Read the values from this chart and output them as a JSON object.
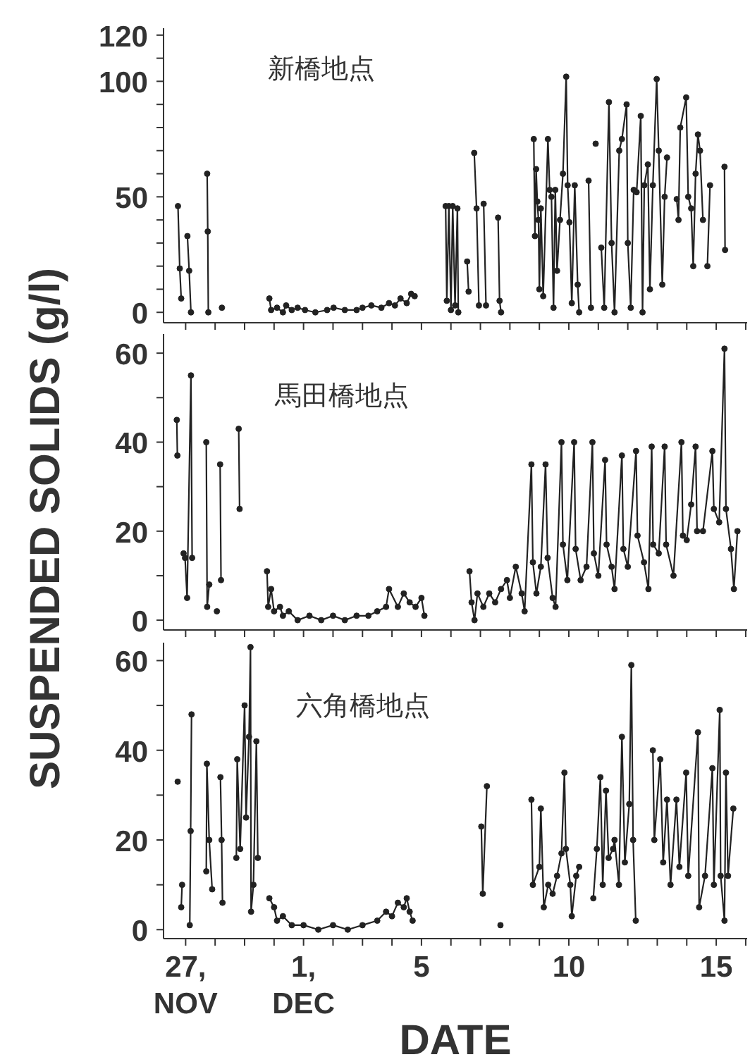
{
  "chart_data": [
    {
      "type": "line",
      "title": "新橋地点",
      "ylabel": "SUSPENDED SOLIDS  (g/l)",
      "tick_labels": "y",
      "marker": "circle",
      "line_style": "solid",
      "xlim": [
        -3.75,
        16.05
      ],
      "xticks": [
        {
          "value": -3,
          "label": null
        },
        {
          "value": -2,
          "label": null
        },
        {
          "value": -1,
          "label": null
        },
        {
          "value": 0,
          "label": null
        },
        {
          "value": 1,
          "label": null
        },
        {
          "value": 2,
          "label": null
        },
        {
          "value": 3,
          "label": null
        },
        {
          "value": 4,
          "label": null
        },
        {
          "value": 5,
          "label": null
        },
        {
          "value": 6,
          "label": null
        },
        {
          "value": 7,
          "label": null
        },
        {
          "value": 8,
          "label": null
        },
        {
          "value": 9,
          "label": null
        },
        {
          "value": 10,
          "label": null
        },
        {
          "value": 11,
          "label": null
        },
        {
          "value": 12,
          "label": null
        },
        {
          "value": 13,
          "label": null
        },
        {
          "value": 14,
          "label": null
        },
        {
          "value": 15,
          "label": null
        },
        {
          "value": 16,
          "label": null
        }
      ],
      "ylim": [
        -4.5,
        123
      ],
      "yticks": [
        0,
        {
          "value": 10,
          "label": null
        },
        {
          "value": 20,
          "label": null
        },
        {
          "value": 30,
          "label": null
        },
        {
          "value": 40,
          "label": null
        },
        50,
        {
          "value": 60,
          "label": null
        },
        {
          "value": 70,
          "label": null
        },
        {
          "value": 80,
          "label": null
        },
        {
          "value": 90,
          "label": null
        },
        100,
        {
          "value": 110,
          "label": null
        },
        120
      ],
      "series": [
        {
          "color": "#222222",
          "x": [
            -3.26,
            -3.2,
            -3.15,
            null,
            -2.94,
            -2.88,
            -2.82,
            null,
            -2.27,
            -2.25,
            -2.23,
            null,
            -1.77,
            null,
            -0.16,
            -0.1,
            0.1,
            0.3,
            0.41,
            0.6,
            0.8,
            1.05,
            1.4,
            1.8,
            2.02,
            2.4,
            2.8,
            3.0,
            3.3,
            3.64,
            3.9,
            4.1,
            4.29,
            4.5,
            4.65,
            4.77,
            null,
            5.82,
            5.86,
            5.93,
            6.0,
            6.06,
            6.14,
            6.22,
            6.25,
            null,
            6.55,
            6.6,
            null,
            6.79,
            6.87,
            6.95,
            null,
            7.11,
            7.19,
            null,
            7.6,
            7.65,
            7.7,
            null,
            8.81,
            8.85,
            8.89,
            8.93,
            8.97,
            9.0,
            9.05,
            9.13,
            9.29,
            9.35,
            9.41,
            9.48,
            9.54,
            9.6,
            9.7,
            9.8,
            9.91,
            9.96,
            10.02,
            10.1,
            10.2,
            10.3,
            10.35,
            null,
            10.67,
            10.75,
            null,
            10.91,
            null,
            11.1,
            11.2,
            11.36,
            11.45,
            11.55,
            11.71,
            11.8,
            11.96,
            12.0,
            12.1,
            12.2,
            12.3,
            12.44,
            12.5,
            12.56,
            12.68,
            12.75,
            12.85,
            12.98,
            13.05,
            13.17,
            13.25,
            13.33,
            null,
            13.66,
            13.72,
            13.78,
            13.98,
            14.05,
            14.15,
            14.22,
            14.3,
            14.38,
            14.45,
            14.55,
            null,
            14.7,
            14.79,
            null,
            15.28,
            15.3
          ],
          "values": [
            46,
            19,
            6,
            null,
            33,
            18,
            0,
            null,
            60,
            35,
            0,
            null,
            2,
            null,
            6,
            1,
            2,
            0,
            3,
            1,
            2,
            1,
            0,
            1,
            2,
            1,
            1,
            2,
            3,
            2,
            4,
            3,
            6,
            4,
            8,
            7,
            null,
            46,
            5,
            46,
            1,
            46,
            3,
            45,
            0,
            null,
            22,
            9,
            null,
            69,
            45,
            3,
            null,
            47,
            3,
            null,
            41,
            5,
            0,
            null,
            75,
            33,
            62,
            48,
            40,
            10,
            45,
            7,
            75,
            53,
            50,
            2,
            53,
            18,
            40,
            60,
            102,
            55,
            39,
            4,
            55,
            12,
            0,
            null,
            57,
            2,
            null,
            73,
            null,
            28,
            2,
            91,
            30,
            0,
            70,
            75,
            90,
            30,
            2,
            53,
            52,
            85,
            0,
            55,
            64,
            10,
            55,
            101,
            70,
            12,
            50,
            67,
            null,
            49,
            40,
            80,
            93,
            50,
            45,
            20,
            60,
            77,
            70,
            40,
            null,
            20,
            55,
            null,
            63,
            27
          ]
        }
      ]
    },
    {
      "type": "line",
      "title": "馬田橋地点",
      "tick_labels": "y",
      "marker": "circle",
      "line_style": "solid",
      "xlim": [
        -3.75,
        16.05
      ],
      "xticks": [
        {
          "value": -3,
          "label": null
        },
        {
          "value": -2,
          "label": null
        },
        {
          "value": -1,
          "label": null
        },
        {
          "value": 0,
          "label": null
        },
        {
          "value": 1,
          "label": null
        },
        {
          "value": 2,
          "label": null
        },
        {
          "value": 3,
          "label": null
        },
        {
          "value": 4,
          "label": null
        },
        {
          "value": 5,
          "label": null
        },
        {
          "value": 6,
          "label": null
        },
        {
          "value": 7,
          "label": null
        },
        {
          "value": 8,
          "label": null
        },
        {
          "value": 9,
          "label": null
        },
        {
          "value": 10,
          "label": null
        },
        {
          "value": 11,
          "label": null
        },
        {
          "value": 12,
          "label": null
        },
        {
          "value": 13,
          "label": null
        },
        {
          "value": 14,
          "label": null
        },
        {
          "value": 15,
          "label": null
        },
        {
          "value": 16,
          "label": null
        }
      ],
      "ylim": [
        -2.2,
        64.3
      ],
      "yticks": [
        0,
        {
          "value": 10,
          "label": null
        },
        20,
        {
          "value": 30,
          "label": null
        },
        40,
        {
          "value": 50,
          "label": null
        },
        60
      ],
      "series": [
        {
          "color": "#222222",
          "x": [
            -3.3,
            -3.28,
            null,
            -3.07,
            -3.02,
            -2.95,
            -2.82,
            -2.78,
            null,
            -2.3,
            -2.27,
            -2.2,
            null,
            -1.94,
            null,
            -1.83,
            -1.8,
            null,
            -1.2,
            -1.17,
            null,
            -0.24,
            -0.2,
            -0.1,
            0.0,
            0.2,
            0.3,
            0.5,
            0.8,
            1.2,
            1.6,
            2.0,
            2.4,
            2.8,
            3.2,
            3.5,
            3.8,
            3.9,
            4.2,
            4.4,
            4.6,
            4.8,
            5.0,
            5.1,
            null,
            6.63,
            6.7,
            6.8,
            6.9,
            7.1,
            7.3,
            7.5,
            7.7,
            7.9,
            8.0,
            8.2,
            8.4,
            8.5,
            8.73,
            8.78,
            8.9,
            9.05,
            9.21,
            9.28,
            9.45,
            9.55,
            9.75,
            9.8,
            9.95,
            10.18,
            10.23,
            10.4,
            10.6,
            10.8,
            10.85,
            11.0,
            11.23,
            11.28,
            11.45,
            11.55,
            11.8,
            11.85,
            12.0,
            12.28,
            12.33,
            12.55,
            12.7,
            12.81,
            12.86,
            13.05,
            13.25,
            13.3,
            13.55,
            13.82,
            13.87,
            14.0,
            14.15,
            14.3,
            14.35,
            14.55,
            14.87,
            14.92,
            15.1,
            15.28,
            15.33,
            15.5,
            15.6,
            15.72
          ],
          "values": [
            45,
            37,
            null,
            15,
            14,
            5,
            55,
            14,
            null,
            40,
            3,
            8,
            null,
            2,
            null,
            35,
            9,
            null,
            43,
            25,
            null,
            11,
            3,
            7,
            2,
            3,
            1,
            2,
            0,
            1,
            0,
            1,
            0,
            1,
            1,
            2,
            3,
            7,
            3,
            6,
            4,
            3,
            5,
            1,
            null,
            11,
            4,
            0,
            6,
            3,
            6,
            4,
            7,
            9,
            5,
            12,
            6,
            2,
            35,
            13,
            6,
            12,
            35,
            14,
            5,
            3,
            40,
            17,
            9,
            40,
            16,
            9,
            12,
            40,
            15,
            10,
            36,
            17,
            12,
            7,
            37,
            16,
            12,
            38,
            19,
            13,
            7,
            39,
            17,
            15,
            39,
            17,
            10,
            40,
            19,
            18,
            26,
            39,
            20,
            20,
            38,
            25,
            22,
            61,
            25,
            16,
            7,
            20
          ]
        }
      ]
    },
    {
      "type": "line",
      "title": "六角橋地点",
      "xlabel": "DATE",
      "marker": "circle",
      "line_style": "solid",
      "xlim": [
        -3.75,
        16.05
      ],
      "xticks": [
        {
          "value": -3,
          "label": "27,\nNOV"
        },
        {
          "value": -2,
          "label": null
        },
        {
          "value": -1,
          "label": null
        },
        {
          "value": 0,
          "label": null
        },
        {
          "value": 1,
          "label": "1,\nDEC"
        },
        {
          "value": 2,
          "label": null
        },
        {
          "value": 3,
          "label": null
        },
        {
          "value": 4,
          "label": null
        },
        5,
        {
          "value": 6,
          "label": null
        },
        {
          "value": 7,
          "label": null
        },
        {
          "value": 8,
          "label": null
        },
        {
          "value": 9,
          "label": null
        },
        10,
        {
          "value": 11,
          "label": null
        },
        {
          "value": 12,
          "label": null
        },
        {
          "value": 13,
          "label": null
        },
        {
          "value": 14,
          "label": null
        },
        15,
        {
          "value": 16,
          "label": null
        }
      ],
      "ylim": [
        -2,
        64
      ],
      "yticks": [
        0,
        {
          "value": 10,
          "label": null
        },
        20,
        {
          "value": 30,
          "label": null
        },
        40,
        {
          "value": 50,
          "label": null
        },
        60
      ],
      "series": [
        {
          "color": "#222222",
          "x": [
            -3.27,
            null,
            -3.15,
            -3.12,
            null,
            -2.86,
            -2.83,
            -2.8,
            null,
            -2.3,
            -2.28,
            -2.2,
            -2.1,
            null,
            -1.82,
            -1.78,
            -1.75,
            null,
            -1.28,
            -1.25,
            -1.15,
            -1.0,
            -0.95,
            -0.85,
            -0.8,
            -0.78,
            -0.7,
            -0.6,
            -0.55,
            null,
            -0.16,
            0.0,
            0.1,
            0.3,
            0.6,
            1.0,
            1.5,
            2.0,
            2.5,
            3.0,
            3.5,
            3.8,
            4.0,
            4.2,
            4.4,
            4.5,
            4.6,
            4.7,
            null,
            7.03,
            7.08,
            7.22,
            null,
            7.68,
            null,
            8.73,
            8.78,
            9.0,
            9.05,
            9.15,
            9.3,
            9.45,
            9.6,
            9.75,
            9.85,
            9.9,
            10.05,
            10.1,
            10.25,
            10.35,
            null,
            10.83,
            10.95,
            11.07,
            11.15,
            11.26,
            11.35,
            11.5,
            11.55,
            11.7,
            11.8,
            11.9,
            12.05,
            12.12,
            12.18,
            12.27,
            null,
            12.85,
            12.9,
            13.1,
            13.2,
            13.33,
            13.45,
            13.65,
            13.75,
            13.98,
            14.05,
            14.38,
            14.42,
            14.62,
            14.87,
            14.92,
            15.12,
            15.15,
            15.28,
            15.33,
            15.4,
            15.58
          ],
          "values": [
            33,
            null,
            5,
            10,
            null,
            1,
            22,
            48,
            null,
            13,
            37,
            20,
            9,
            null,
            34,
            20,
            6,
            null,
            16,
            38,
            18,
            50,
            25,
            43,
            63,
            4,
            10,
            42,
            16,
            null,
            7,
            5,
            2,
            3,
            1,
            1,
            0,
            1,
            0,
            1,
            2,
            4,
            3,
            6,
            5,
            7,
            4,
            2,
            null,
            23,
            8,
            32,
            null,
            1,
            null,
            29,
            10,
            14,
            27,
            5,
            10,
            8,
            12,
            17,
            35,
            18,
            10,
            3,
            12,
            14,
            null,
            7,
            18,
            34,
            10,
            31,
            16,
            18,
            20,
            10,
            43,
            15,
            28,
            59,
            20,
            2,
            null,
            40,
            20,
            38,
            15,
            29,
            10,
            29,
            14,
            35,
            12,
            44,
            5,
            12,
            36,
            10,
            49,
            12,
            2,
            35,
            12,
            27
          ]
        }
      ]
    }
  ]
}
